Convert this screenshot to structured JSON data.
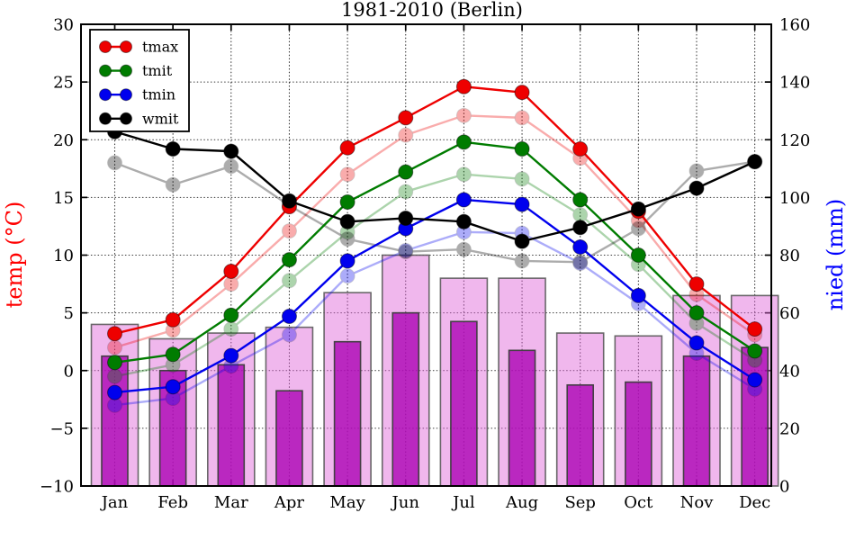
{
  "chart_data": {
    "type": "line+bar",
    "title": "1981-2010 (Berlin)",
    "months": [
      "Jan",
      "Feb",
      "Mar",
      "Apr",
      "May",
      "Jun",
      "Jul",
      "Aug",
      "Sep",
      "Oct",
      "Nov",
      "Dec"
    ],
    "left_axis": {
      "label": "temp (°C)",
      "color": "#ff0000",
      "min": -10,
      "max": 30,
      "ticks": [
        -10,
        -5,
        0,
        5,
        10,
        15,
        20,
        25,
        30
      ]
    },
    "right_axis": {
      "label": "nied (mm)",
      "color": "#0000ff",
      "min": 0,
      "max": 160,
      "ticks": [
        0,
        20,
        40,
        60,
        80,
        100,
        120,
        140,
        160
      ]
    },
    "grid": "dotted",
    "legend_position": "top-left",
    "legend": [
      "tmax",
      "tmit",
      "tmin",
      "wmit"
    ],
    "series": [
      {
        "name": "tmax",
        "color": "#ee0000",
        "values": [
          3.2,
          4.4,
          8.6,
          14.2,
          19.3,
          21.9,
          24.6,
          24.1,
          19.2,
          13.8,
          7.5,
          3.6
        ]
      },
      {
        "name": "tmit",
        "color": "#007c00",
        "values": [
          0.7,
          1.4,
          4.8,
          9.6,
          14.6,
          17.2,
          19.8,
          19.2,
          14.8,
          10.0,
          5.0,
          1.7
        ]
      },
      {
        "name": "tmin",
        "color": "#0000ee",
        "values": [
          -1.9,
          -1.4,
          1.3,
          4.7,
          9.5,
          12.3,
          14.8,
          14.4,
          10.7,
          6.5,
          2.4,
          -0.8
        ]
      },
      {
        "name": "wmit",
        "color": "#000000",
        "values": [
          20.7,
          19.2,
          19.0,
          14.7,
          12.9,
          13.2,
          12.9,
          11.2,
          12.4,
          14.0,
          15.8,
          18.1
        ]
      }
    ],
    "faded_reference_series": [
      {
        "name": "tmax_ref",
        "color": "#ee0000",
        "values": [
          2.0,
          3.5,
          7.5,
          12.1,
          17.0,
          20.4,
          22.1,
          21.9,
          18.4,
          13.0,
          6.6,
          3.1
        ]
      },
      {
        "name": "tmit_ref",
        "color": "#007c00",
        "values": [
          -0.5,
          0.5,
          3.6,
          7.8,
          12.0,
          15.5,
          17.0,
          16.6,
          13.5,
          9.2,
          4.1,
          0.9
        ]
      },
      {
        "name": "tmin_ref",
        "color": "#0000ee",
        "values": [
          -3.0,
          -2.4,
          0.4,
          3.1,
          8.2,
          10.4,
          12.0,
          11.9,
          9.3,
          5.8,
          1.5,
          -1.6
        ]
      },
      {
        "name": "wmit_ref",
        "color": "#000000",
        "values": [
          18.0,
          16.1,
          17.7,
          14.3,
          11.4,
          10.3,
          10.5,
          9.5,
          9.4,
          12.3,
          17.3,
          18.1
        ]
      }
    ],
    "bars": {
      "axis": "right",
      "light": {
        "name": "nied_wide_light",
        "color": "rgba(221,96,216,0.45)",
        "edge": "rgba(90,90,90,0.9)",
        "values": [
          56,
          51,
          53,
          55,
          67,
          80,
          72,
          72,
          53,
          52,
          66,
          66
        ]
      },
      "dark": {
        "name": "nied_narrow_dark",
        "color": "rgba(170,0,180,0.78)",
        "edge": "rgba(60,60,60,0.95)",
        "values": [
          45,
          40,
          42,
          33,
          50,
          60,
          57,
          47,
          35,
          36,
          45,
          48
        ]
      }
    }
  }
}
